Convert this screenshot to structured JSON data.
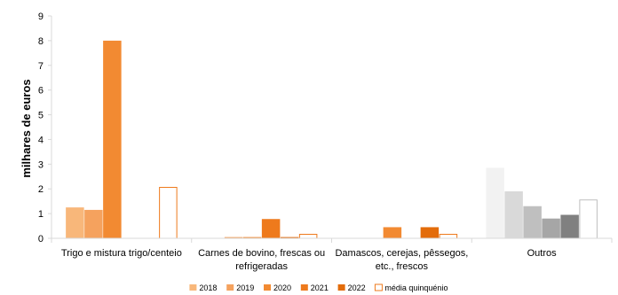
{
  "chart_data": {
    "type": "bar",
    "ylabel": "milhares de euros",
    "ylim": [
      0,
      9
    ],
    "yticks": [
      "0",
      "1",
      "2",
      "3",
      "4",
      "5",
      "6",
      "7",
      "8",
      "9"
    ],
    "grid": false,
    "legend_position": "bottom",
    "categories": [
      [
        "Trigo e mistura trigo/centeio"
      ],
      [
        "Carnes de bovino, frescas ou",
        "refrigeradas"
      ],
      [
        "Damascos, cerejas, pêssegos,",
        "etc., frescos"
      ],
      [
        "Outros"
      ]
    ],
    "series": [
      {
        "name": "2018",
        "values": [
          1.25,
          0.0,
          0.0,
          2.85
        ]
      },
      {
        "name": "2019",
        "values": [
          1.15,
          0.05,
          0.0,
          1.9
        ]
      },
      {
        "name": "2020",
        "values": [
          8.0,
          0.05,
          0.45,
          1.3
        ]
      },
      {
        "name": "2021",
        "values": [
          0.0,
          0.78,
          0.0,
          0.8
        ]
      },
      {
        "name": "2022",
        "values": [
          0.0,
          0.05,
          0.45,
          0.95
        ]
      },
      {
        "name": "média quinquénio",
        "values": [
          2.08,
          0.18,
          0.18,
          1.57
        ]
      }
    ],
    "colors": {
      "default": [
        "#F8B77A",
        "#F5A25E",
        "#F28A32",
        "#EE7A1C",
        "#E36C0A",
        "#FFFFFF"
      ],
      "default_stroke": [
        null,
        null,
        null,
        null,
        null,
        "#EE7A1C"
      ],
      "outros": [
        "#F2F2F2",
        "#D9D9D9",
        "#BFBFBF",
        "#A6A6A6",
        "#808080",
        "#FFFFFF"
      ],
      "outros_stroke": [
        null,
        null,
        null,
        null,
        null,
        "#BFBFBF"
      ]
    }
  }
}
